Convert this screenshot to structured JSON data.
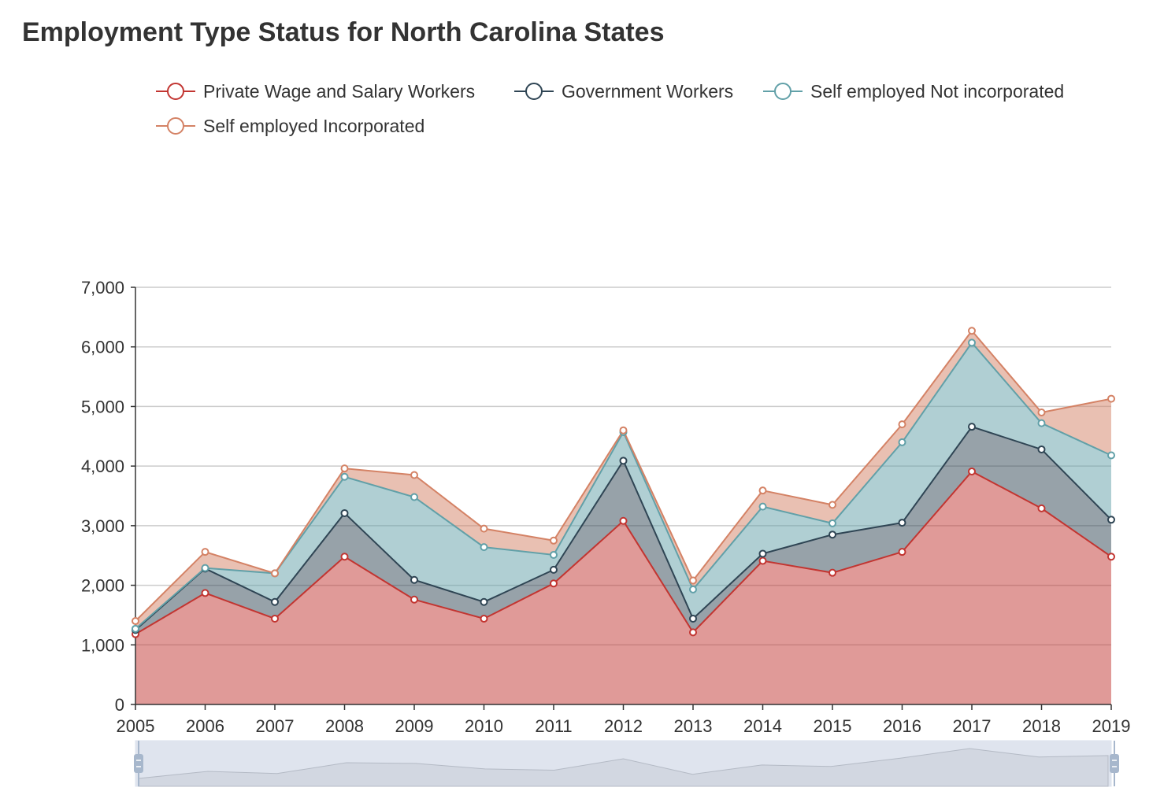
{
  "title": "Employment Type Status for North Carolina States",
  "legend": [
    {
      "label": "Private Wage and Salary Workers",
      "color": "#c23531"
    },
    {
      "label": "Government Workers",
      "color": "#2f4554"
    },
    {
      "label": "Self employed Not incorporated",
      "color": "#61a0a8"
    },
    {
      "label": "Self employed Incorporated",
      "color": "#d48265"
    }
  ],
  "chart_data": {
    "type": "area",
    "stacked": true,
    "title": "Employment Type Status for North Carolina States",
    "categories": [
      "2005",
      "2006",
      "2007",
      "2008",
      "2009",
      "2010",
      "2011",
      "2012",
      "2013",
      "2014",
      "2015",
      "2016",
      "2017",
      "2018",
      "2019"
    ],
    "ylim": [
      0,
      7000
    ],
    "yticks": [
      "0",
      "1,000",
      "2,000",
      "3,000",
      "4,000",
      "5,000",
      "6,000",
      "7,000"
    ],
    "grid": true,
    "legend_position": "top",
    "data_zoom_slider": true,
    "series": [
      {
        "name": "Private Wage and Salary Workers",
        "color": "#c23531",
        "values": [
          1180,
          1870,
          1440,
          2480,
          1760,
          1440,
          2030,
          3080,
          1210,
          2410,
          2210,
          2560,
          3910,
          3290,
          2480
        ]
      },
      {
        "name": "Government Workers",
        "color": "#2f4554",
        "values": [
          70,
          410,
          280,
          730,
          330,
          280,
          230,
          1010,
          230,
          120,
          640,
          490,
          750,
          990,
          620
        ]
      },
      {
        "name": "Self employed Not incorporated",
        "color": "#61a0a8",
        "values": [
          20,
          10,
          480,
          610,
          1390,
          920,
          250,
          480,
          490,
          790,
          190,
          1350,
          1410,
          440,
          1080
        ]
      },
      {
        "name": "Self employed Incorporated",
        "color": "#d48265",
        "values": [
          130,
          270,
          0,
          140,
          370,
          310,
          240,
          30,
          150,
          270,
          310,
          300,
          200,
          180,
          950
        ]
      }
    ]
  }
}
